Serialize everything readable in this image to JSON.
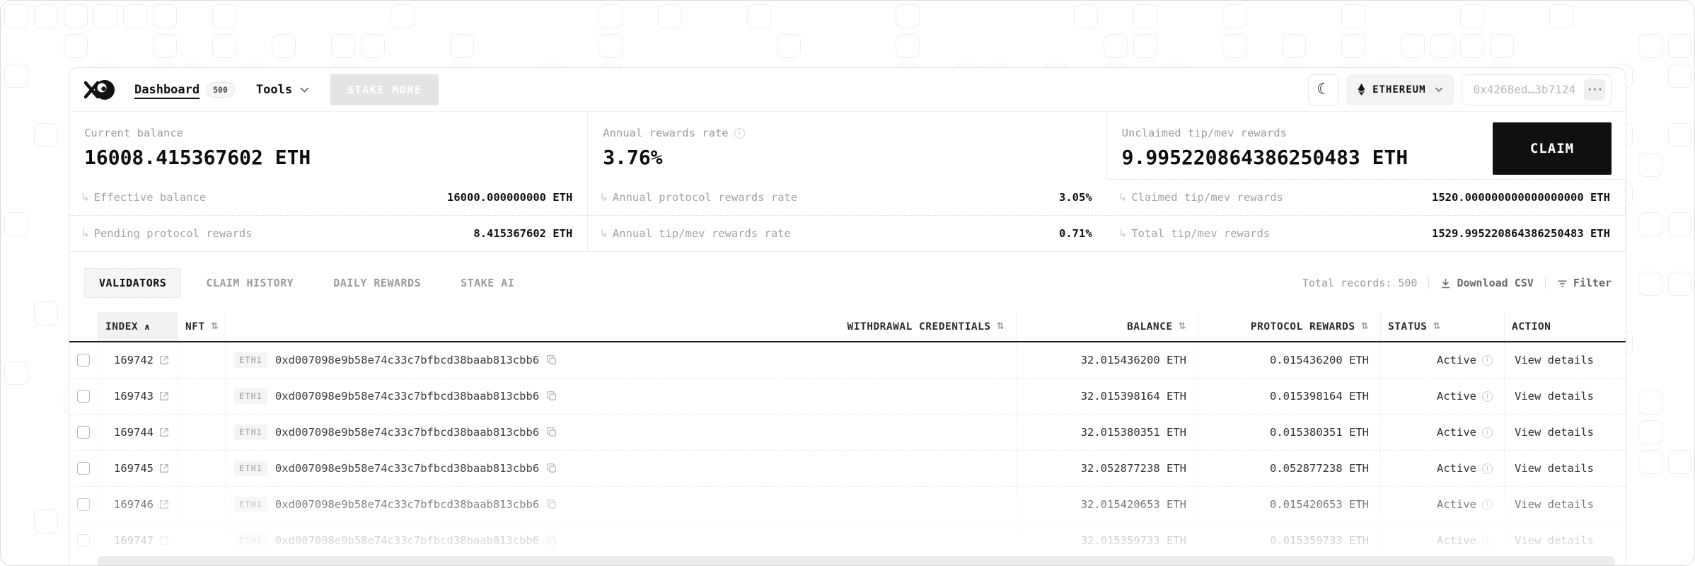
{
  "icons": {
    "moon": "☾",
    "corner_arrow": "↳",
    "more": "···"
  },
  "nav": {
    "dashboard_label": "Dashboard",
    "dashboard_badge": "500",
    "tools_label": "Tools",
    "stake_more_label": "STAKE MORE"
  },
  "wallet": {
    "network": "ETHEREUM",
    "address": "0x4268ed…3b7124"
  },
  "overview": {
    "current": {
      "label": "Current balance",
      "value": "16008.415367602 ETH"
    },
    "apr": {
      "label": "Annual rewards rate",
      "value": "3.76%"
    },
    "unclaimed": {
      "label": "Unclaimed tip/mev rewards",
      "value": "9.995220864386250483 ETH",
      "claim_label": "CLAIM"
    }
  },
  "details": [
    {
      "label": "Effective balance",
      "value": "16000.000000000 ETH"
    },
    {
      "label": "Annual protocol rewards rate",
      "value": "3.05%"
    },
    {
      "label": "Claimed tip/mev rewards",
      "value": "1520.000000000000000000 ETH"
    },
    {
      "label": "Pending protocol rewards",
      "value": "8.415367602 ETH"
    },
    {
      "label": "Annual tip/mev rewards rate",
      "value": "0.71%"
    },
    {
      "label": "Total tip/mev rewards",
      "value": "1529.995220864386250483 ETH"
    }
  ],
  "tabs": [
    {
      "label": "VALIDATORS",
      "active": true
    },
    {
      "label": "CLAIM HISTORY"
    },
    {
      "label": "DAILY REWARDS"
    },
    {
      "label": "STAKE AI"
    }
  ],
  "table_meta": {
    "total_label": "Total records:",
    "total_value": "500",
    "download_label": "Download CSV",
    "filter_label": "Filter"
  },
  "table": {
    "columns": [
      {
        "label": "",
        "sort_glyph": ""
      },
      {
        "label": "INDEX",
        "sort_glyph": "∧",
        "sorted": true
      },
      {
        "label": "NFT",
        "sort_glyph": "⇅"
      },
      {
        "label": "WITHDRAWAL CREDENTIALS",
        "sort_glyph": "⇅"
      },
      {
        "label": "BALANCE",
        "sort_glyph": "⇅"
      },
      {
        "label": "PROTOCOL REWARDS",
        "sort_glyph": "⇅"
      },
      {
        "label": "STATUS",
        "sort_glyph": "⇅"
      },
      {
        "label": "ACTION",
        "sort_glyph": ""
      }
    ],
    "rows": [
      {
        "index": "169742",
        "badge": "ETH1",
        "address": "0xd007098e9b58e74c33c7bfbcd38baab813cbb6",
        "balance": "32.015436200 ETH",
        "rewards": "0.015436200 ETH",
        "status": "Active",
        "action": "View details"
      },
      {
        "index": "169743",
        "badge": "ETH1",
        "address": "0xd007098e9b58e74c33c7bfbcd38baab813cbb6",
        "balance": "32.015398164 ETH",
        "rewards": "0.015398164 ETH",
        "status": "Active",
        "action": "View details"
      },
      {
        "index": "169744",
        "badge": "ETH1",
        "address": "0xd007098e9b58e74c33c7bfbcd38baab813cbb6",
        "balance": "32.015380351 ETH",
        "rewards": "0.015380351 ETH",
        "status": "Active",
        "action": "View details"
      },
      {
        "index": "169745",
        "badge": "ETH1",
        "address": "0xd007098e9b58e74c33c7bfbcd38baab813cbb6",
        "balance": "32.052877238 ETH",
        "rewards": "0.052877238 ETH",
        "status": "Active",
        "action": "View details"
      },
      {
        "index": "169746",
        "badge": "ETH1",
        "address": "0xd007098e9b58e74c33c7bfbcd38baab813cbb6",
        "balance": "32.015420653 ETH",
        "rewards": "0.015420653 ETH",
        "status": "Active",
        "action": "View details"
      },
      {
        "index": "169747",
        "badge": "ETH1",
        "address": "0xd007098e9b58e74c33c7bfbcd38baab813cbb6",
        "balance": "32.015359733 ETH",
        "rewards": "0.015359733 ETH",
        "status": "Active",
        "action": "View details"
      }
    ]
  }
}
